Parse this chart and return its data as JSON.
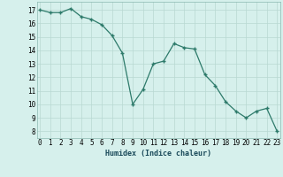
{
  "x": [
    0,
    1,
    2,
    3,
    4,
    5,
    6,
    7,
    8,
    9,
    10,
    11,
    12,
    13,
    14,
    15,
    16,
    17,
    18,
    19,
    20,
    21,
    22,
    23
  ],
  "y": [
    17.0,
    16.8,
    16.8,
    17.1,
    16.5,
    16.3,
    15.9,
    15.1,
    13.8,
    10.0,
    11.1,
    13.0,
    13.2,
    14.5,
    14.2,
    14.1,
    12.2,
    11.4,
    10.2,
    9.5,
    9.0,
    9.5,
    9.7,
    8.0
  ],
  "line_color": "#2d7a6a",
  "marker_color": "#2d7a6a",
  "bg_color": "#d6f0ec",
  "grid_color": "#b8d8d2",
  "xlabel": "Humidex (Indice chaleur)",
  "yticks": [
    8,
    9,
    10,
    11,
    12,
    13,
    14,
    15,
    16,
    17
  ],
  "xticks": [
    0,
    1,
    2,
    3,
    4,
    5,
    6,
    7,
    8,
    9,
    10,
    11,
    12,
    13,
    14,
    15,
    16,
    17,
    18,
    19,
    20,
    21,
    22,
    23
  ],
  "ylim": [
    7.5,
    17.6
  ],
  "xlim": [
    -0.3,
    23.3
  ],
  "tick_fontsize": 5.5,
  "xlabel_fontsize": 6.0
}
